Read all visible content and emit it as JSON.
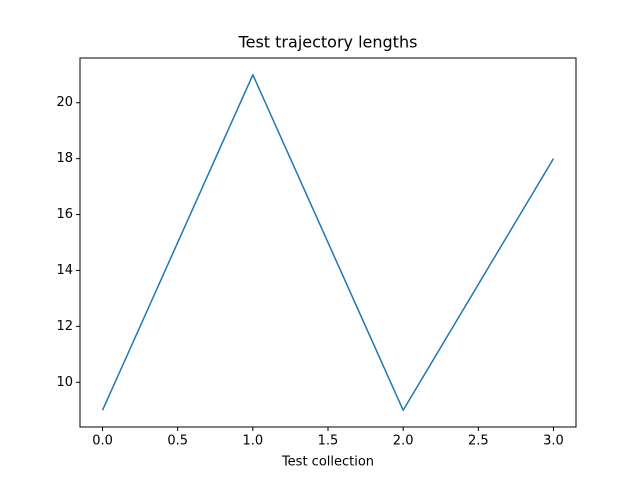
{
  "chart_data": {
    "type": "line",
    "title": "Test trajectory lengths",
    "x_label": "Test collection",
    "x": [
      0,
      1,
      2,
      3
    ],
    "series": [
      {
        "color": "#1f77b4",
        "values": [
          9,
          21,
          9,
          18
        ]
      }
    ],
    "xlim": [
      -0.15,
      3.15
    ],
    "xticks": [
      {
        "value": 0,
        "label": "0.0"
      },
      0.5,
      {
        "value": 1,
        "label": "1.0"
      },
      1.5,
      {
        "value": 2,
        "label": "2.0"
      },
      2.5,
      {
        "value": 3,
        "label": "3.0"
      }
    ],
    "ylim": [
      8.4,
      21.6
    ],
    "yticks": [
      10,
      12,
      14,
      16,
      18,
      20
    ],
    "grid": false
  }
}
